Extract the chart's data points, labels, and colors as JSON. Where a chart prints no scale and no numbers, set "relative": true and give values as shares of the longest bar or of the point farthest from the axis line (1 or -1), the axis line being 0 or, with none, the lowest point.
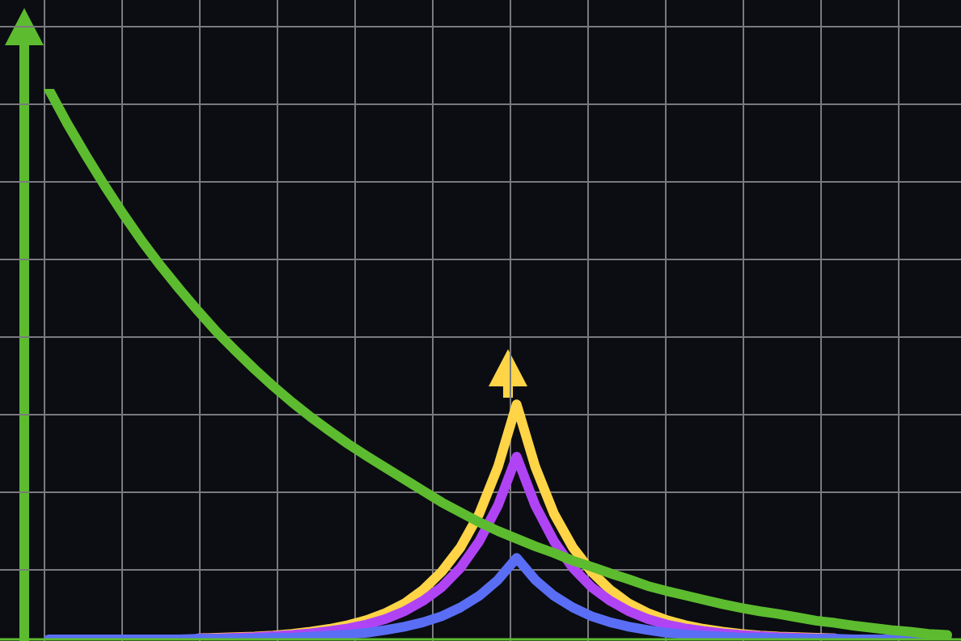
{
  "chart_data": {
    "type": "line",
    "relative": true,
    "grid": true,
    "marker": "none",
    "line_style": "solid",
    "categories": [
      null,
      null,
      null,
      null,
      null,
      null,
      null,
      null,
      null,
      null,
      null,
      null,
      null,
      null,
      null,
      null,
      null,
      null,
      null,
      null,
      null,
      null,
      null,
      null,
      null,
      null,
      null,
      null,
      null,
      null,
      null,
      null,
      null,
      null,
      null,
      null,
      null,
      null,
      null,
      null,
      null,
      null,
      null,
      null,
      null,
      null,
      null,
      null,
      null
    ],
    "series": [
      {
        "color": "#ffd447",
        "values": [
          null,
          null,
          null,
          null,
          null,
          null,
          null,
          null,
          0.002,
          0.003,
          0.004,
          0.005,
          0.007,
          0.01,
          0.014,
          0.019,
          0.026,
          0.035,
          0.048,
          0.065,
          0.09,
          0.123,
          0.167,
          0.228,
          0.313,
          0.427,
          0.313,
          0.228,
          0.167,
          0.123,
          0.09,
          0.065,
          0.048,
          0.035,
          0.026,
          0.019,
          0.014,
          0.01,
          0.007,
          0.005,
          0.004,
          0.003,
          0.002,
          null,
          null,
          null,
          null,
          null,
          null
        ]
      },
      {
        "color": "#b044f5",
        "values": [
          null,
          null,
          null,
          null,
          null,
          null,
          null,
          null,
          0.002,
          0.002,
          0.003,
          0.004,
          0.006,
          0.008,
          0.011,
          0.015,
          0.02,
          0.027,
          0.037,
          0.051,
          0.07,
          0.095,
          0.13,
          0.178,
          0.243,
          0.332,
          0.243,
          0.178,
          0.13,
          0.095,
          0.07,
          0.051,
          0.037,
          0.027,
          0.02,
          0.015,
          0.011,
          0.008,
          0.006,
          0.004,
          0.003,
          0.002,
          0.002,
          null,
          null,
          null,
          null,
          null,
          null
        ]
      },
      {
        "color": "#5a6ef5",
        "values": [
          0,
          0,
          0,
          0,
          0,
          0,
          0,
          0,
          0.001,
          0.001,
          0.001,
          0.002,
          0.003,
          0.003,
          0.005,
          0.007,
          0.009,
          0.012,
          0.017,
          0.023,
          0.031,
          0.042,
          0.058,
          0.079,
          0.108,
          0.148,
          0.108,
          0.079,
          0.058,
          0.042,
          0.031,
          0.023,
          0.017,
          0.012,
          0.009,
          0.007,
          0.005,
          0.003,
          0.003,
          0.002,
          0.001,
          0.001,
          0.001,
          0,
          0,
          0,
          0,
          0,
          0
        ]
      },
      {
        "color": "#5dbb2f",
        "values": [
          1,
          0.937,
          0.879,
          0.824,
          0.772,
          0.723,
          0.678,
          0.636,
          0.596,
          0.558,
          0.524,
          0.491,
          0.46,
          0.431,
          0.404,
          0.379,
          0.355,
          0.333,
          0.312,
          0.291,
          0.27,
          0.249,
          0.231,
          0.213,
          0.197,
          0.183,
          0.169,
          0.157,
          0.143,
          0.132,
          0.12,
          0.109,
          0.097,
          0.088,
          0.08,
          0.072,
          0.064,
          0.057,
          0.051,
          0.046,
          0.04,
          0.034,
          0.03,
          0.025,
          0.021,
          0.017,
          0.014,
          0.01,
          0.008
        ]
      }
    ]
  }
}
